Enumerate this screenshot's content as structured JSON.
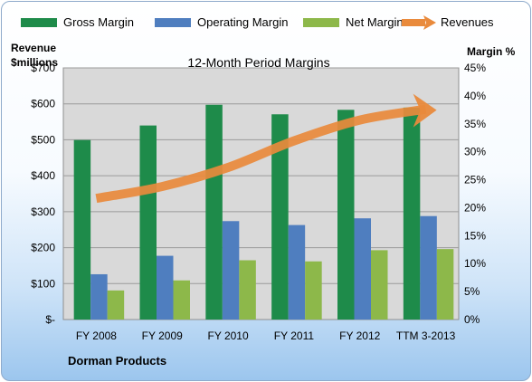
{
  "chart_data": {
    "type": "bar",
    "title": "12-Month Period Margins",
    "left_axis_title_line1": "Revenue",
    "left_axis_title_line2": "$millions",
    "right_axis_title": "Margin %",
    "footer": "Dorman Products",
    "categories": [
      "FY 2008",
      "FY 2009",
      "FY 2010",
      "FY 2011",
      "FY 2012",
      "TTM 3-2013"
    ],
    "left_ticks": [
      "$-",
      "$100",
      "$200",
      "$300",
      "$400",
      "$500",
      "$600",
      "$700"
    ],
    "right_ticks": [
      "0%",
      "5%",
      "10%",
      "15%",
      "20%",
      "25%",
      "30%",
      "35%",
      "40%",
      "45%"
    ],
    "ylim_left": [
      0,
      700
    ],
    "ylim_right": [
      0,
      45
    ],
    "grid": true,
    "legend_position": "top",
    "series": [
      {
        "name": "Gross Margin",
        "kind": "bar",
        "color": "#1e8b4a",
        "values": [
          32.1,
          34.7,
          38.4,
          36.7,
          37.5,
          37.9
        ]
      },
      {
        "name": "Operating Margin",
        "kind": "bar",
        "color": "#4f7ebf",
        "values": [
          8.1,
          11.4,
          17.6,
          16.9,
          18.1,
          18.5
        ]
      },
      {
        "name": "Net Margin",
        "kind": "bar",
        "color": "#8db84a",
        "values": [
          5.2,
          7.0,
          10.6,
          10.4,
          12.4,
          12.6
        ]
      },
      {
        "name": "Revenues",
        "kind": "line",
        "axis": "left",
        "color": "#e98a3c",
        "values": [
          337,
          370,
          423,
          497,
          555,
          585
        ]
      }
    ]
  }
}
